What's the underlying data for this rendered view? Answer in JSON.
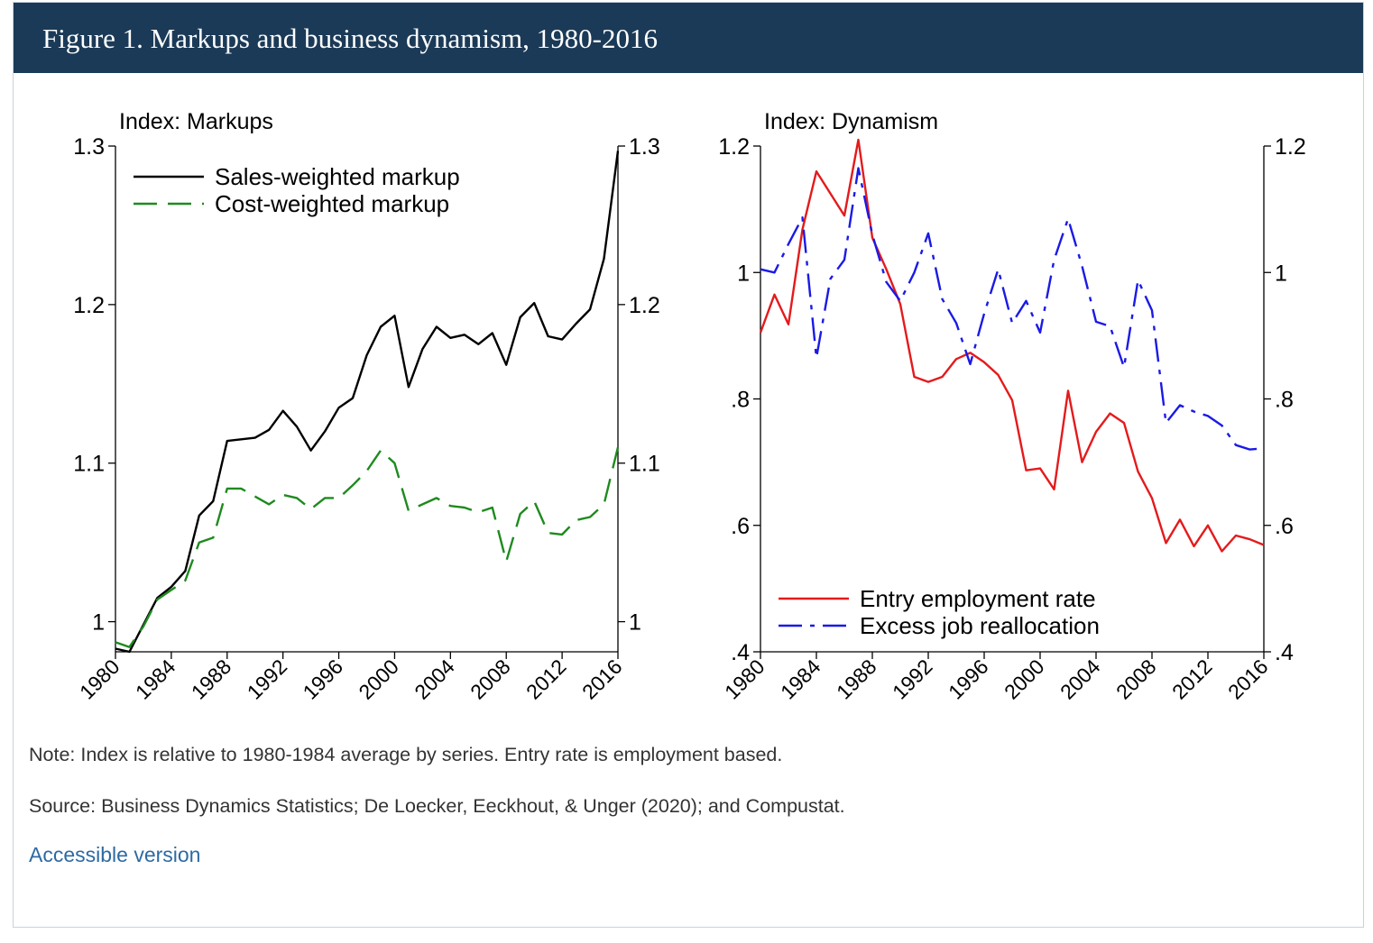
{
  "figure": {
    "title": "Figure 1. Markups and business dynamism, 1980-2016",
    "note": "Note: Index is relative to 1980-1984 average by series. Entry rate is employment based.",
    "source": "Source: Business Dynamics Statistics; De Loecker, Eeckhout, & Unger (2020); and Compustat.",
    "link_label": "Accessible version"
  },
  "chart_data": [
    {
      "type": "line",
      "ylabel": "Index: Markups",
      "ylim": [
        0.981,
        1.3
      ],
      "xlim": [
        1980,
        2016
      ],
      "yticks": [
        1,
        1.1,
        1.2,
        1.3
      ],
      "ytick_labels": [
        "1",
        "1.1",
        "1.2",
        "1.3"
      ],
      "xticks": [
        1980,
        1984,
        1988,
        1992,
        1996,
        2000,
        2004,
        2008,
        2012,
        2016
      ],
      "xtick_labels": [
        "1980",
        "1984",
        "1988",
        "1992",
        "1996",
        "2000",
        "2004",
        "2008",
        "2012",
        "2016"
      ],
      "legend": "top-left",
      "grid": false,
      "x": [
        1980,
        1981,
        1982,
        1983,
        1984,
        1985,
        1986,
        1987,
        1988,
        1989,
        1990,
        1991,
        1992,
        1993,
        1994,
        1995,
        1996,
        1997,
        1998,
        1999,
        2000,
        2001,
        2002,
        2003,
        2004,
        2005,
        2006,
        2007,
        2008,
        2009,
        2010,
        2011,
        2012,
        2013,
        2014,
        2015,
        2016
      ],
      "series": [
        {
          "name": "Sales-weighted markup",
          "color": "#000000",
          "dash": "solid",
          "values": [
            0.983,
            0.981,
            0.998,
            1.015,
            1.022,
            1.032,
            1.067,
            1.076,
            1.114,
            1.115,
            1.116,
            1.121,
            1.133,
            1.123,
            1.108,
            1.12,
            1.135,
            1.141,
            1.168,
            1.186,
            1.193,
            1.148,
            1.172,
            1.186,
            1.179,
            1.181,
            1.175,
            1.182,
            1.162,
            1.192,
            1.201,
            1.18,
            1.178,
            1.188,
            1.197,
            1.229,
            1.297
          ]
        },
        {
          "name": "Cost-weighted markup",
          "color": "#1e8a1e",
          "dash": "dashed",
          "values": [
            0.987,
            0.984,
            0.997,
            1.014,
            1.02,
            1.026,
            1.05,
            1.053,
            1.084,
            1.084,
            1.079,
            1.074,
            1.08,
            1.078,
            1.071,
            1.078,
            1.078,
            1.086,
            1.095,
            1.108,
            1.1,
            1.07,
            1.074,
            1.078,
            1.073,
            1.072,
            1.069,
            1.072,
            1.038,
            1.068,
            1.076,
            1.056,
            1.055,
            1.064,
            1.066,
            1.074,
            1.11
          ]
        }
      ]
    },
    {
      "type": "line",
      "ylabel": "Index: Dynamism",
      "ylim": [
        0.4,
        1.2
      ],
      "xlim": [
        1980,
        2016
      ],
      "yticks": [
        0.4,
        0.6,
        0.8,
        1,
        1.2
      ],
      "ytick_labels": [
        ".4",
        ".6",
        ".8",
        "1",
        "1.2"
      ],
      "xticks": [
        1980,
        1984,
        1988,
        1992,
        1996,
        2000,
        2004,
        2008,
        2012,
        2016
      ],
      "xtick_labels": [
        "1980",
        "1984",
        "1988",
        "1992",
        "1996",
        "2000",
        "2004",
        "2008",
        "2012",
        "2016"
      ],
      "legend": "bottom-left",
      "grid": false,
      "x": [
        1980,
        1981,
        1982,
        1983,
        1984,
        1985,
        1986,
        1987,
        1988,
        1989,
        1990,
        1991,
        1992,
        1993,
        1994,
        1995,
        1996,
        1997,
        1998,
        1999,
        2000,
        2001,
        2002,
        2003,
        2004,
        2005,
        2006,
        2007,
        2008,
        2009,
        2010,
        2011,
        2012,
        2013,
        2014,
        2015,
        2016
      ],
      "series": [
        {
          "name": "Entry employment rate",
          "color": "#e41a1c",
          "dash": "solid",
          "values": [
            0.905,
            0.965,
            0.918,
            1.068,
            1.16,
            1.125,
            1.09,
            1.21,
            1.055,
            1.005,
            0.95,
            0.835,
            0.827,
            0.835,
            0.863,
            0.873,
            0.858,
            0.838,
            0.798,
            0.687,
            0.69,
            0.657,
            0.813,
            0.7,
            0.748,
            0.777,
            0.762,
            0.685,
            0.643,
            0.572,
            0.609,
            0.567,
            0.6,
            0.559,
            0.584,
            0.578,
            0.569
          ]
        },
        {
          "name": "Excess job reallocation",
          "color": "#1a1ae6",
          "dash": "dashdot",
          "values": [
            1.005,
            1.0,
            1.045,
            1.087,
            0.865,
            0.99,
            1.02,
            1.165,
            1.06,
            0.985,
            0.955,
            1.0,
            1.062,
            0.958,
            0.92,
            0.855,
            0.935,
            1.005,
            0.92,
            0.955,
            0.905,
            1.02,
            1.085,
            1.01,
            0.922,
            0.915,
            0.85,
            0.988,
            0.94,
            0.762,
            0.79,
            0.78,
            0.773,
            0.758,
            0.727,
            0.72,
            0.722
          ]
        }
      ]
    }
  ]
}
